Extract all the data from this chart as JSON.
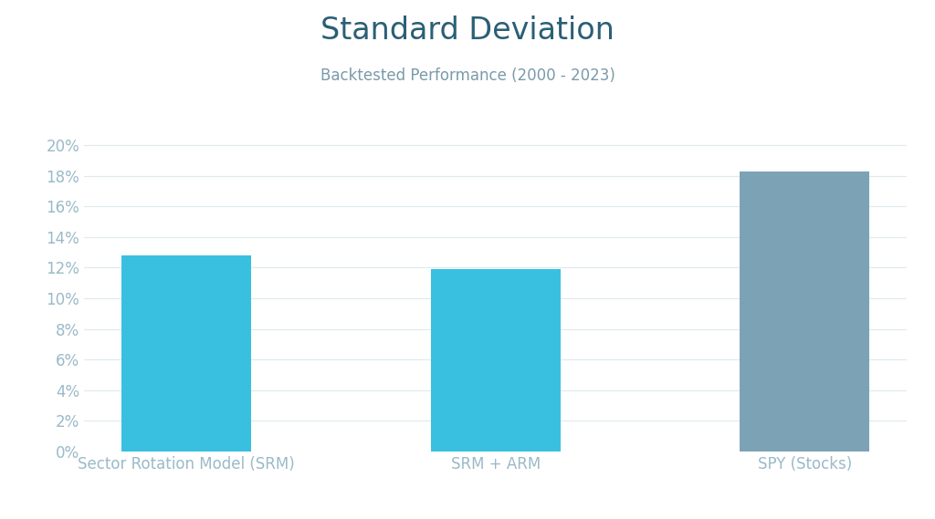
{
  "title": "Standard Deviation",
  "subtitle": "Backtested Performance (2000 - 2023)",
  "categories": [
    "Sector Rotation Model (SRM)",
    "SRM + ARM",
    "SPY (Stocks)"
  ],
  "values": [
    0.128,
    0.119,
    0.183
  ],
  "bar_colors": [
    "#39C0E0",
    "#39C0E0",
    "#7BA3B5"
  ],
  "ylim": [
    0,
    0.21
  ],
  "yticks": [
    0.0,
    0.02,
    0.04,
    0.06,
    0.08,
    0.1,
    0.12,
    0.14,
    0.16,
    0.18,
    0.2
  ],
  "title_color": "#2B5F75",
  "subtitle_color": "#7A9AAA",
  "tick_color": "#9ABAC8",
  "grid_color": "#DDEAEE",
  "background_color": "#FFFFFF",
  "title_fontsize": 24,
  "subtitle_fontsize": 12,
  "tick_fontsize": 12,
  "xlabel_fontsize": 12,
  "bar_width": 0.42
}
